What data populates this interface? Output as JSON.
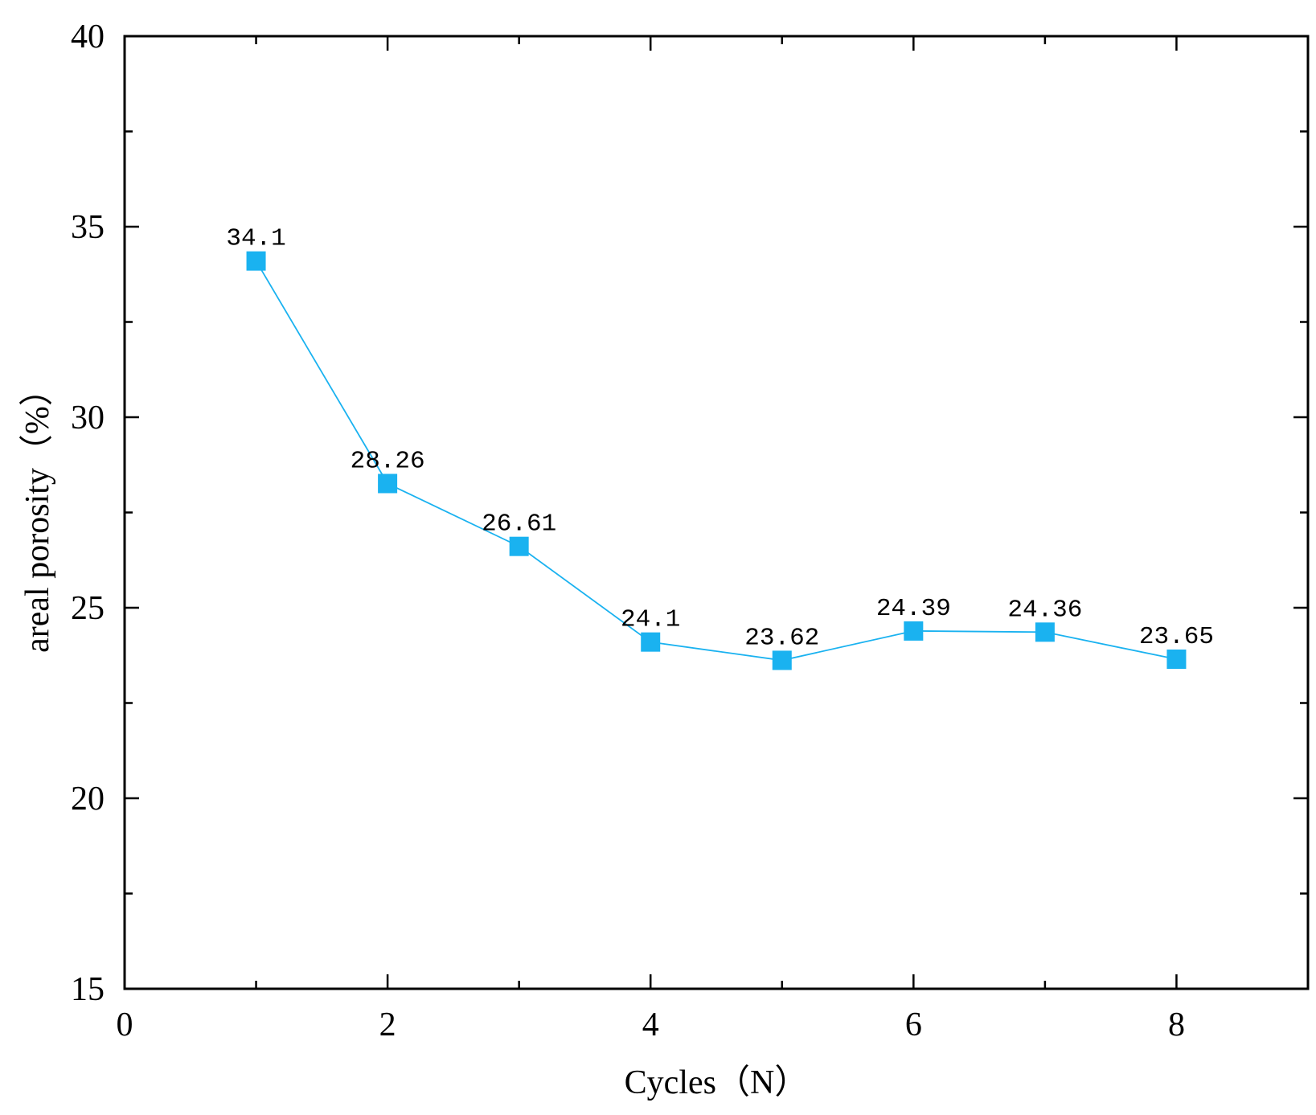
{
  "chart_data": {
    "type": "line",
    "title": "",
    "xlabel": "Cycles（N）",
    "ylabel": "areal porosity（%）",
    "xlim": [
      0,
      9
    ],
    "ylim": [
      15,
      40
    ],
    "x_ticks": [
      0,
      2,
      4,
      6,
      8
    ],
    "x_minor_ticks": [
      1,
      3,
      5,
      7,
      9
    ],
    "y_ticks": [
      15,
      20,
      25,
      30,
      35,
      40
    ],
    "y_minor_ticks": [
      17.5,
      22.5,
      27.5,
      32.5,
      37.5
    ],
    "grid": false,
    "series": [
      {
        "name": "areal porosity",
        "color": "#1AB2F0",
        "marker": "square",
        "x": [
          1,
          2,
          3,
          4,
          5,
          6,
          7,
          8
        ],
        "values": [
          34.1,
          28.26,
          26.61,
          24.1,
          23.62,
          24.39,
          24.36,
          23.65
        ],
        "labels": [
          "34.1",
          "28.26",
          "26.61",
          "24.1",
          "23.62",
          "24.39",
          "24.36",
          "23.65"
        ]
      }
    ]
  }
}
